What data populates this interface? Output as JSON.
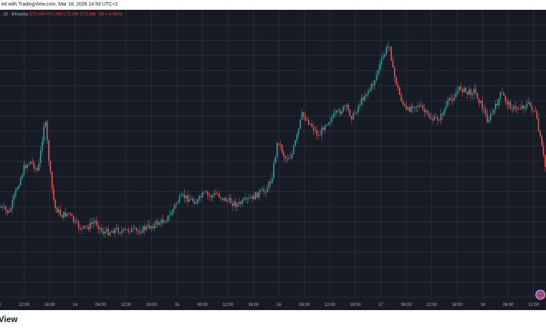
{
  "header": {
    "text": "ed with TradingView.com, Mar 18, 2026 14:59 UTC+2"
  },
  "legend": {
    "symbol": "· 15 · Bitstamp",
    "ohlc": "O72,440  H72,498  L72,296  C72,388  −59 (−0.08%)"
  },
  "footer": {
    "brand": "View"
  },
  "colors": {
    "up": "#26a69a",
    "down": "#ef5350",
    "background": "#171b26",
    "grid": "#2a2e39"
  },
  "chart_data": {
    "type": "candlestick",
    "grid": true,
    "x_ticks": [
      "00",
      "12:00",
      "18:00",
      "14",
      "06:00",
      "12:00",
      "18:00",
      "15",
      "06:00",
      "12:00",
      "18:00",
      "16",
      "06:00",
      "12:00",
      "18:00",
      "17",
      "06:00",
      "12:00",
      "18:00",
      "18",
      "06:00",
      "12:00"
    ],
    "close_path": [
      [
        0.0,
        0.7
      ],
      [
        1.25,
        0.72
      ],
      [
        2.5,
        0.62
      ],
      [
        3.5,
        0.55
      ],
      [
        4.5,
        0.53
      ],
      [
        5.5,
        0.57
      ],
      [
        6.5,
        0.37
      ],
      [
        7.0,
        0.5
      ],
      [
        7.5,
        0.62
      ],
      [
        8.0,
        0.7
      ],
      [
        9.0,
        0.73
      ],
      [
        10.0,
        0.72
      ],
      [
        11.0,
        0.76
      ],
      [
        12.0,
        0.78
      ],
      [
        13.0,
        0.77
      ],
      [
        14.0,
        0.75
      ],
      [
        15.0,
        0.79
      ],
      [
        16.0,
        0.79
      ],
      [
        17.0,
        0.78
      ],
      [
        18.0,
        0.79
      ],
      [
        19.0,
        0.78
      ],
      [
        20.0,
        0.79
      ],
      [
        21.0,
        0.78
      ],
      [
        22.0,
        0.77
      ],
      [
        23.0,
        0.76
      ],
      [
        24.0,
        0.75
      ],
      [
        25.0,
        0.73
      ],
      [
        26.0,
        0.68
      ],
      [
        27.0,
        0.66
      ],
      [
        28.0,
        0.67
      ],
      [
        29.0,
        0.68
      ],
      [
        30.0,
        0.65
      ],
      [
        31.0,
        0.66
      ],
      [
        32.0,
        0.65
      ],
      [
        33.0,
        0.67
      ],
      [
        34.0,
        0.68
      ],
      [
        35.0,
        0.69
      ],
      [
        36.0,
        0.68
      ],
      [
        37.0,
        0.67
      ],
      [
        38.0,
        0.65
      ],
      [
        39.0,
        0.64
      ],
      [
        40.0,
        0.6
      ],
      [
        41.0,
        0.45
      ],
      [
        42.0,
        0.52
      ],
      [
        43.0,
        0.51
      ],
      [
        44.0,
        0.42
      ],
      [
        44.5,
        0.36
      ],
      [
        45.0,
        0.37
      ],
      [
        46.0,
        0.4
      ],
      [
        47.0,
        0.44
      ],
      [
        48.0,
        0.39
      ],
      [
        49.0,
        0.37
      ],
      [
        50.0,
        0.35
      ],
      [
        51.0,
        0.33
      ],
      [
        52.0,
        0.37
      ],
      [
        53.0,
        0.32
      ],
      [
        54.0,
        0.28
      ],
      [
        55.0,
        0.25
      ],
      [
        56.0,
        0.18
      ],
      [
        57.0,
        0.12
      ],
      [
        57.5,
        0.1
      ],
      [
        58.0,
        0.2
      ],
      [
        59.0,
        0.29
      ],
      [
        60.0,
        0.35
      ],
      [
        61.0,
        0.32
      ],
      [
        62.0,
        0.33
      ],
      [
        63.0,
        0.36
      ],
      [
        64.0,
        0.38
      ],
      [
        65.0,
        0.37
      ],
      [
        66.0,
        0.32
      ],
      [
        67.0,
        0.29
      ],
      [
        68.0,
        0.26
      ],
      [
        69.0,
        0.28
      ],
      [
        70.0,
        0.27
      ],
      [
        71.0,
        0.32
      ],
      [
        72.0,
        0.38
      ],
      [
        73.0,
        0.34
      ],
      [
        74.0,
        0.28
      ],
      [
        75.0,
        0.32
      ],
      [
        76.0,
        0.34
      ],
      [
        77.0,
        0.33
      ],
      [
        78.0,
        0.32
      ],
      [
        79.0,
        0.35
      ],
      [
        80.0,
        0.48
      ],
      [
        80.5,
        0.55
      ]
    ]
  }
}
